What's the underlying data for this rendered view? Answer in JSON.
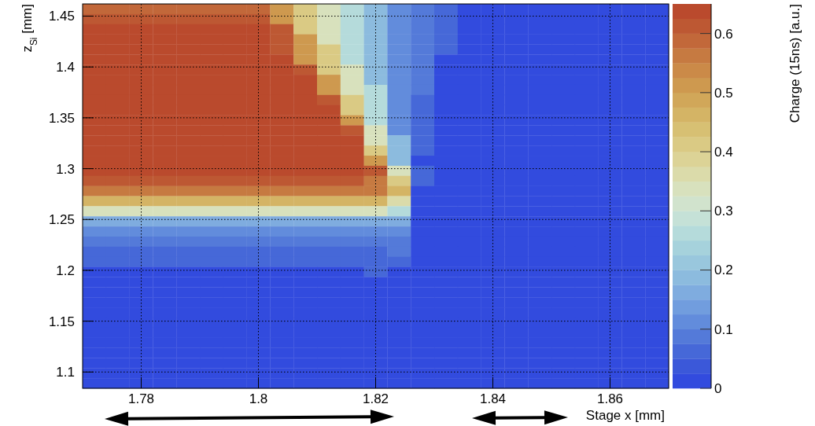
{
  "chart_data": {
    "type": "heatmap",
    "xlabel": "Stage x [mm]",
    "ylabel": "z$_{Si}$ [mm]",
    "clabel": "Charge (15ns) [a.u.]",
    "x": [
      1.772,
      1.776,
      1.78,
      1.784,
      1.788,
      1.792,
      1.796,
      1.8,
      1.804,
      1.808,
      1.812,
      1.816,
      1.82,
      1.824,
      1.828,
      1.832,
      1.836,
      1.84,
      1.844,
      1.848,
      1.852,
      1.856,
      1.86,
      1.864,
      1.868
    ],
    "xlim": [
      1.77,
      1.87
    ],
    "ylim": [
      1.084,
      1.462
    ],
    "xticks": [
      1.78,
      1.8,
      1.82,
      1.84,
      1.86
    ],
    "yticks": [
      1.1,
      1.15,
      1.2,
      1.25,
      1.3,
      1.35,
      1.4,
      1.45
    ],
    "clim": [
      0,
      0.65
    ],
    "cticks": [
      0,
      0.1,
      0.2,
      0.3,
      0.4,
      0.5,
      0.6
    ],
    "grid": true,
    "cells": [
      [
        0.58,
        0.58,
        0.58,
        0.58,
        0.58,
        0.58,
        0.58,
        0.58,
        0.52,
        0.42,
        0.33,
        0.25,
        0.18,
        0.12,
        0.08,
        0.05,
        0,
        0,
        0,
        0,
        0,
        0,
        0,
        0,
        0
      ],
      [
        0.6,
        0.6,
        0.6,
        0.6,
        0.6,
        0.6,
        0.6,
        0.6,
        0.52,
        0.42,
        0.33,
        0.25,
        0.18,
        0.12,
        0.08,
        0.05,
        0,
        0,
        0,
        0,
        0,
        0,
        0,
        0,
        0
      ],
      [
        0.64,
        0.64,
        0.64,
        0.64,
        0.64,
        0.64,
        0.64,
        0.64,
        0.6,
        0.42,
        0.33,
        0.25,
        0.18,
        0.12,
        0.08,
        0.05,
        0,
        0,
        0,
        0,
        0,
        0,
        0,
        0,
        0
      ],
      [
        0.64,
        0.64,
        0.64,
        0.64,
        0.64,
        0.64,
        0.64,
        0.64,
        0.6,
        0.52,
        0.33,
        0.25,
        0.18,
        0.12,
        0.08,
        0.05,
        0,
        0,
        0,
        0,
        0,
        0,
        0,
        0,
        0
      ],
      [
        0.64,
        0.64,
        0.64,
        0.64,
        0.64,
        0.64,
        0.64,
        0.64,
        0.6,
        0.52,
        0.42,
        0.25,
        0.18,
        0.12,
        0.08,
        0.05,
        0,
        0,
        0,
        0,
        0,
        0,
        0,
        0,
        0
      ],
      [
        0.64,
        0.64,
        0.64,
        0.64,
        0.64,
        0.64,
        0.64,
        0.64,
        0.64,
        0.52,
        0.42,
        0.25,
        0.18,
        0.12,
        0.08,
        0.02,
        0,
        0,
        0,
        0,
        0,
        0,
        0,
        0,
        0
      ],
      [
        0.64,
        0.64,
        0.64,
        0.64,
        0.64,
        0.64,
        0.64,
        0.64,
        0.64,
        0.6,
        0.42,
        0.33,
        0.18,
        0.12,
        0.08,
        0.02,
        0,
        0,
        0,
        0,
        0,
        0,
        0,
        0,
        0
      ],
      [
        0.64,
        0.64,
        0.64,
        0.64,
        0.64,
        0.64,
        0.64,
        0.64,
        0.64,
        0.64,
        0.52,
        0.33,
        0.18,
        0.12,
        0.08,
        0.02,
        0,
        0,
        0,
        0,
        0,
        0,
        0,
        0,
        0
      ],
      [
        0.64,
        0.64,
        0.64,
        0.64,
        0.64,
        0.64,
        0.64,
        0.64,
        0.64,
        0.64,
        0.52,
        0.33,
        0.25,
        0.12,
        0.08,
        0.02,
        0,
        0,
        0,
        0,
        0,
        0,
        0,
        0,
        0
      ],
      [
        0.64,
        0.64,
        0.64,
        0.64,
        0.64,
        0.64,
        0.64,
        0.64,
        0.64,
        0.64,
        0.6,
        0.42,
        0.25,
        0.12,
        0.05,
        0.02,
        0,
        0,
        0,
        0,
        0,
        0,
        0,
        0,
        0
      ],
      [
        0.64,
        0.64,
        0.64,
        0.64,
        0.64,
        0.64,
        0.64,
        0.64,
        0.64,
        0.64,
        0.64,
        0.42,
        0.25,
        0.12,
        0.05,
        0.02,
        0,
        0,
        0,
        0,
        0,
        0,
        0,
        0,
        0
      ],
      [
        0.64,
        0.64,
        0.64,
        0.64,
        0.64,
        0.64,
        0.64,
        0.64,
        0.64,
        0.64,
        0.64,
        0.52,
        0.25,
        0.12,
        0.05,
        0,
        0,
        0,
        0,
        0,
        0,
        0,
        0,
        0,
        0
      ],
      [
        0.64,
        0.64,
        0.64,
        0.64,
        0.64,
        0.64,
        0.64,
        0.64,
        0.64,
        0.64,
        0.64,
        0.6,
        0.33,
        0.12,
        0.05,
        0,
        0,
        0,
        0,
        0,
        0,
        0,
        0,
        0,
        0
      ],
      [
        0.64,
        0.64,
        0.64,
        0.64,
        0.64,
        0.64,
        0.64,
        0.64,
        0.64,
        0.64,
        0.64,
        0.64,
        0.33,
        0.18,
        0.05,
        0,
        0,
        0,
        0,
        0,
        0,
        0,
        0,
        0,
        0
      ],
      [
        0.64,
        0.64,
        0.64,
        0.64,
        0.64,
        0.64,
        0.64,
        0.64,
        0.64,
        0.64,
        0.64,
        0.64,
        0.42,
        0.18,
        0.05,
        0,
        0,
        0,
        0,
        0,
        0,
        0,
        0,
        0,
        0
      ],
      [
        0.64,
        0.64,
        0.64,
        0.64,
        0.64,
        0.64,
        0.64,
        0.64,
        0.64,
        0.64,
        0.64,
        0.64,
        0.52,
        0.18,
        0.02,
        0,
        0,
        0,
        0,
        0,
        0,
        0,
        0,
        0,
        0
      ],
      [
        0.64,
        0.64,
        0.64,
        0.64,
        0.64,
        0.64,
        0.64,
        0.64,
        0.64,
        0.64,
        0.64,
        0.64,
        0.6,
        0.33,
        0.05,
        0,
        0,
        0,
        0,
        0,
        0,
        0,
        0,
        0,
        0
      ],
      [
        0.6,
        0.6,
        0.6,
        0.6,
        0.6,
        0.6,
        0.6,
        0.6,
        0.6,
        0.6,
        0.6,
        0.6,
        0.57,
        0.4,
        0.05,
        0,
        0,
        0,
        0,
        0,
        0,
        0,
        0,
        0,
        0
      ],
      [
        0.55,
        0.55,
        0.55,
        0.55,
        0.55,
        0.55,
        0.55,
        0.55,
        0.55,
        0.55,
        0.55,
        0.55,
        0.55,
        0.45,
        0,
        0,
        0,
        0,
        0,
        0,
        0,
        0,
        0,
        0,
        0
      ],
      [
        0.47,
        0.47,
        0.47,
        0.47,
        0.47,
        0.47,
        0.47,
        0.47,
        0.47,
        0.47,
        0.47,
        0.47,
        0.47,
        0.35,
        0,
        0,
        0,
        0,
        0,
        0,
        0,
        0,
        0,
        0,
        0
      ],
      [
        0.33,
        0.33,
        0.33,
        0.33,
        0.33,
        0.33,
        0.33,
        0.33,
        0.33,
        0.33,
        0.33,
        0.33,
        0.33,
        0.25,
        0,
        0,
        0,
        0,
        0,
        0,
        0,
        0,
        0,
        0,
        0
      ],
      [
        0.17,
        0.17,
        0.17,
        0.17,
        0.17,
        0.17,
        0.17,
        0.17,
        0.17,
        0.17,
        0.17,
        0.17,
        0.17,
        0.15,
        0,
        0,
        0,
        0,
        0,
        0,
        0,
        0,
        0,
        0,
        0
      ],
      [
        0.1,
        0.1,
        0.1,
        0.1,
        0.1,
        0.1,
        0.1,
        0.1,
        0.1,
        0.1,
        0.1,
        0.1,
        0.1,
        0.12,
        0,
        0,
        0,
        0,
        0,
        0,
        0,
        0,
        0,
        0,
        0
      ],
      [
        0.08,
        0.08,
        0.08,
        0.08,
        0.08,
        0.08,
        0.08,
        0.08,
        0.08,
        0.08,
        0.08,
        0.08,
        0.08,
        0.08,
        0,
        0,
        0,
        0,
        0,
        0,
        0,
        0,
        0,
        0,
        0
      ],
      [
        0.07,
        0.07,
        0.07,
        0.07,
        0.07,
        0.07,
        0.07,
        0.07,
        0.07,
        0.07,
        0.07,
        0.07,
        0.07,
        0.08,
        0,
        0,
        0,
        0,
        0,
        0,
        0,
        0,
        0,
        0,
        0
      ],
      [
        0.07,
        0.07,
        0.07,
        0.07,
        0.07,
        0.07,
        0.07,
        0.07,
        0.07,
        0.07,
        0.07,
        0.07,
        0.07,
        0.07,
        0,
        0,
        0,
        0,
        0,
        0,
        0,
        0,
        0,
        0,
        0
      ],
      [
        0,
        0,
        0,
        0,
        0,
        0,
        0,
        0,
        0,
        0,
        0,
        0,
        0.05,
        0,
        0,
        0,
        0,
        0,
        0,
        0,
        0,
        0,
        0,
        0,
        0
      ],
      [
        0,
        0,
        0,
        0,
        0,
        0,
        0,
        0,
        0,
        0,
        0,
        0,
        0,
        0,
        0,
        0,
        0,
        0,
        0,
        0,
        0,
        0,
        0,
        0,
        0
      ],
      [
        0,
        0,
        0,
        0,
        0,
        0,
        0,
        0,
        0,
        0,
        0,
        0,
        0,
        0,
        0,
        0,
        0,
        0,
        0,
        0,
        0,
        0,
        0,
        0,
        0
      ],
      [
        0,
        0,
        0,
        0,
        0,
        0,
        0,
        0,
        0,
        0,
        0,
        0,
        0,
        0,
        0,
        0,
        0,
        0,
        0,
        0,
        0,
        0,
        0,
        0,
        0
      ],
      [
        0,
        0,
        0,
        0,
        0,
        0,
        0,
        0,
        0,
        0,
        0,
        0,
        0,
        0,
        0,
        0,
        0,
        0,
        0,
        0,
        0,
        0,
        0,
        0,
        0
      ],
      [
        0,
        0,
        0,
        0,
        0,
        0,
        0,
        0,
        0,
        0,
        0,
        0,
        0,
        0,
        0,
        0,
        0,
        0,
        0,
        0,
        0,
        0,
        0,
        0,
        0
      ],
      [
        0,
        0,
        0,
        0,
        0,
        0,
        0,
        0,
        0,
        0,
        0,
        0,
        0,
        0,
        0,
        0,
        0,
        0,
        0,
        0,
        0,
        0,
        0,
        0,
        0
      ],
      [
        0,
        0,
        0,
        0,
        0,
        0,
        0,
        0,
        0,
        0,
        0,
        0,
        0,
        0,
        0,
        0,
        0,
        0,
        0,
        0,
        0,
        0,
        0,
        0,
        0
      ],
      [
        0,
        0,
        0,
        0,
        0,
        0,
        0,
        0,
        0,
        0,
        0,
        0,
        0,
        0,
        0,
        0,
        0,
        0,
        0,
        0,
        0,
        0,
        0,
        0,
        0
      ],
      [
        0,
        0,
        0,
        0,
        0,
        0,
        0,
        0,
        0,
        0,
        0,
        0,
        0,
        0,
        0,
        0,
        0,
        0,
        0,
        0,
        0,
        0,
        0,
        0,
        0
      ],
      [
        0,
        0,
        0,
        0,
        0,
        0,
        0,
        0,
        0,
        0,
        0,
        0,
        0,
        0,
        0,
        0,
        0,
        0,
        0,
        0,
        0,
        0,
        0,
        0,
        0
      ],
      [
        0,
        0,
        0,
        0,
        0,
        0,
        0,
        0,
        0,
        0,
        0,
        0,
        0,
        0,
        0,
        0,
        0,
        0,
        0,
        0,
        0,
        0,
        0,
        0,
        0
      ]
    ]
  }
}
